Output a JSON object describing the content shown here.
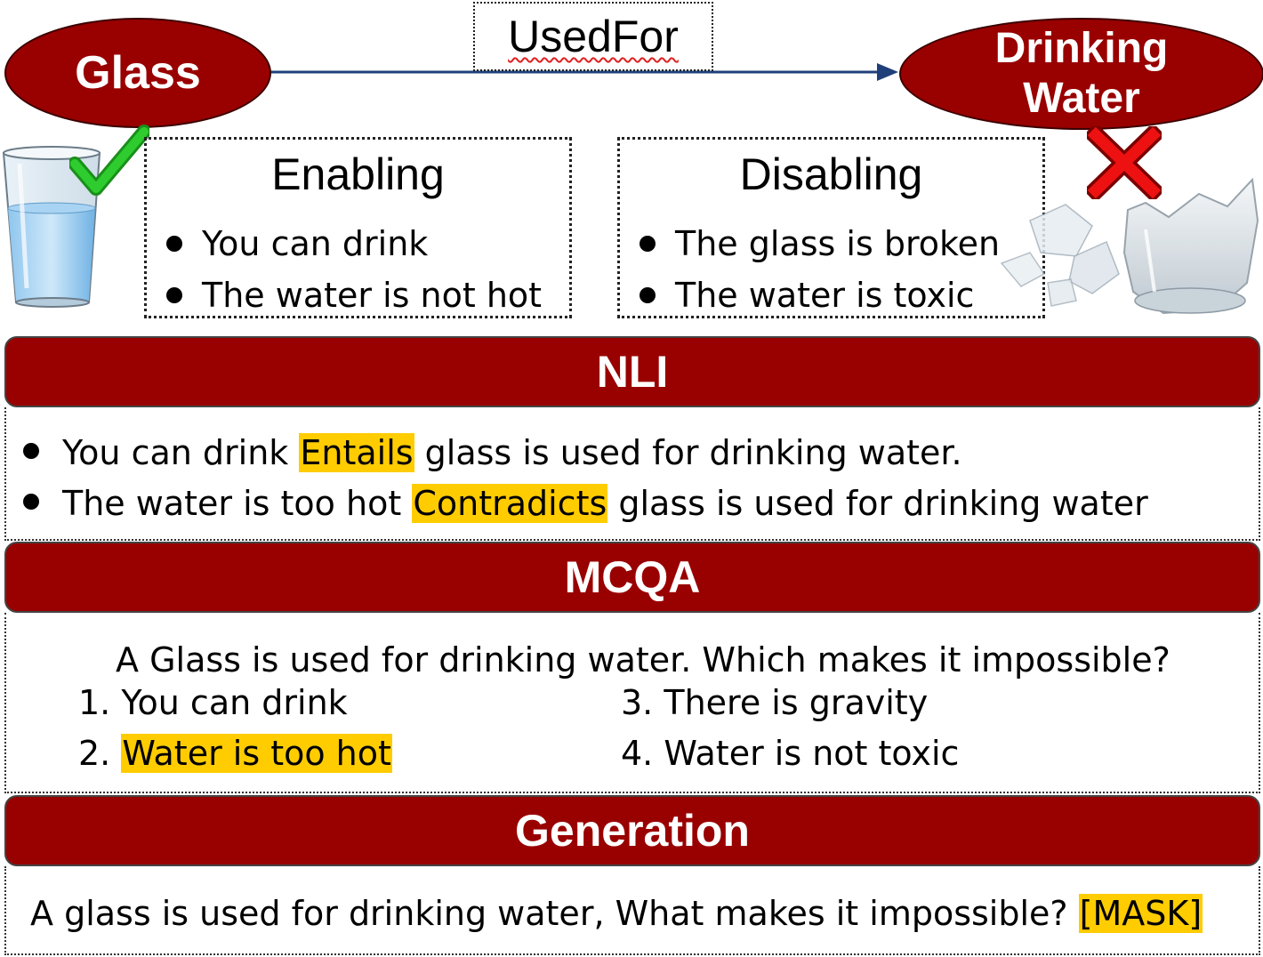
{
  "graph": {
    "head": "Glass",
    "tail_line1": "Drinking",
    "tail_line2": "Water",
    "relation": "UsedFor"
  },
  "enabling": {
    "title": "Enabling",
    "items": [
      "You can drink",
      "The water is not hot"
    ]
  },
  "disabling": {
    "title": "Disabling",
    "items": [
      "The glass is broken",
      "The water is toxic"
    ]
  },
  "nli": {
    "header": "NLI",
    "line1": {
      "pre": "You can drink ",
      "label": "Entails",
      "post": " glass is used for drinking water."
    },
    "line2": {
      "pre": "The water is too hot ",
      "label": "Contradicts",
      "post": " glass is used for drinking water"
    }
  },
  "mcqa": {
    "header": "MCQA",
    "question": "A Glass is used for drinking water. Which makes it impossible?",
    "opt1_num": "1.",
    "opt1": "You can drink",
    "opt2_num": "2.",
    "opt2": "Water is too hot",
    "opt3_num": "3.",
    "opt3": "There is gravity",
    "opt4_num": "4.",
    "opt4": "Water is not toxic"
  },
  "generation": {
    "header": "Generation",
    "prompt": "A glass is used for drinking water, What makes it impossible? ",
    "mask": "[MASK]"
  },
  "colors": {
    "node_fill": "#990000",
    "highlight": "#ffcc00",
    "arrow": "#1f3f7a",
    "check": "#22aa22",
    "cross": "#e00000"
  },
  "icons": [
    "glass-of-water-icon",
    "checkmark-icon",
    "cross-icon",
    "broken-glass-icon"
  ]
}
